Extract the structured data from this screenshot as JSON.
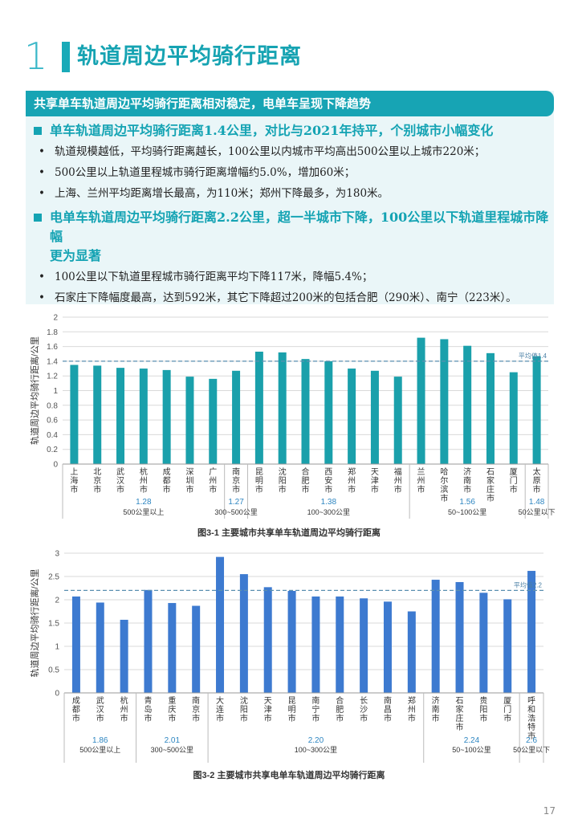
{
  "header": {
    "number": "1",
    "title": "轨道周边平均骑行距离"
  },
  "summary": {
    "banner": "共享单车轨道周边平均骑行距离相对稳定，电单车呈现下降趋势",
    "section1": {
      "heading": "单车轨道周边平均骑行距离1.4公里，对比与2021年持平，个别城市小幅变化",
      "bullets": [
        "轨道规模越低，平均骑行距离越长，100公里以内城市平均高出500公里以上城市220米；",
        "500公里以上轨道里程城市骑行距离增幅约5.0%，增加60米；",
        "上海、兰州平均距离增长最高，为110米；郑州下降最多，为180米。"
      ]
    },
    "section2": {
      "heading_line1": "电单车轨道周边平均骑行距离2.2公里，超一半城市下降，100公里以下轨道里程城市降幅",
      "heading_line2": "更为显著",
      "bullets": [
        "100公里以下轨道里程城市骑行距离平均下降117米，降幅5.4%；",
        "石家庄下降幅度最高，达到592米，其它下降超过200米的包括合肥（290米）、南宁（223米）。"
      ]
    }
  },
  "chart_data": [
    {
      "type": "bar",
      "title": "图3-1 主要城市共享单车轨道周边平均骑行距离",
      "ylabel": "轨道周边平均骑行距离/公里",
      "ylim": [
        0,
        2
      ],
      "yticks": [
        "0",
        "0.2",
        "0.4",
        "0.6",
        "0.8",
        "1",
        "1.2",
        "1.4",
        "1.6",
        "1.8",
        "2"
      ],
      "color": "#1aa0ab",
      "categories": [
        "上海市",
        "北京市",
        "武汉市",
        "杭州市",
        "成都市",
        "深圳市",
        "广州市",
        "南京市",
        "昆明市",
        "沈阳市",
        "合肥市",
        "西安市",
        "郑州市",
        "天津市",
        "福州市",
        "兰州市",
        "哈尔滨市",
        "济南市",
        "石家庄市",
        "厦门市",
        "太原市"
      ],
      "values": [
        1.35,
        1.34,
        1.31,
        1.3,
        1.28,
        1.19,
        1.16,
        1.27,
        1.53,
        1.52,
        1.43,
        1.4,
        1.3,
        1.27,
        1.19,
        1.72,
        1.7,
        1.61,
        1.51,
        1.25,
        1.47
      ],
      "average": {
        "label": "平均值1.4",
        "value": 1.4
      },
      "groups": [
        {
          "avg": "1.28",
          "label": "500公里以上",
          "count": 7
        },
        {
          "avg": "1.27",
          "label": "300~500公里",
          "count": 1
        },
        {
          "avg": "1.38",
          "label": "100~300公里",
          "count": 7
        },
        {
          "avg": "1.56",
          "label": "50~100公里",
          "count": 5
        },
        {
          "avg": "1.48",
          "label": "50公里以下",
          "count": 1
        }
      ]
    },
    {
      "type": "bar",
      "title": "图3-2 主要城市共享电单车轨道周边平均骑行距离",
      "ylabel": "轨道周边平均骑行距离/公里",
      "ylim": [
        0,
        3
      ],
      "yticks": [
        "0",
        "0.5",
        "1",
        "1.5",
        "2",
        "2.5",
        "3"
      ],
      "color": "#3d7ad0",
      "categories": [
        "成都市",
        "武汉市",
        "杭州市",
        "青岛市",
        "重庆市",
        "南京市",
        "大连市",
        "沈阳市",
        "天津市",
        "昆明市",
        "南宁市",
        "合肥市",
        "长沙市",
        "南昌市",
        "郑州市",
        "济南市",
        "石家庄市",
        "贵阳市",
        "厦门市",
        "呼和浩特市"
      ],
      "values": [
        2.07,
        1.94,
        1.57,
        2.21,
        1.93,
        1.87,
        2.92,
        2.55,
        2.27,
        2.19,
        2.07,
        2.07,
        2.03,
        1.96,
        1.75,
        2.43,
        2.38,
        2.15,
        2.01,
        2.62
      ],
      "average": {
        "label": "平均值2.2",
        "value": 2.2
      },
      "groups": [
        {
          "avg": "1.86",
          "label": "500公里以上",
          "count": 3
        },
        {
          "avg": "2.01",
          "label": "300~500公里",
          "count": 3
        },
        {
          "avg": "2.20",
          "label": "100~300公里",
          "count": 9
        },
        {
          "avg": "2.24",
          "label": "50~100公里",
          "count": 4
        },
        {
          "avg": "2.6",
          "label": "50公里以下",
          "count": 1
        }
      ]
    }
  ],
  "footer": {
    "page": "17"
  }
}
